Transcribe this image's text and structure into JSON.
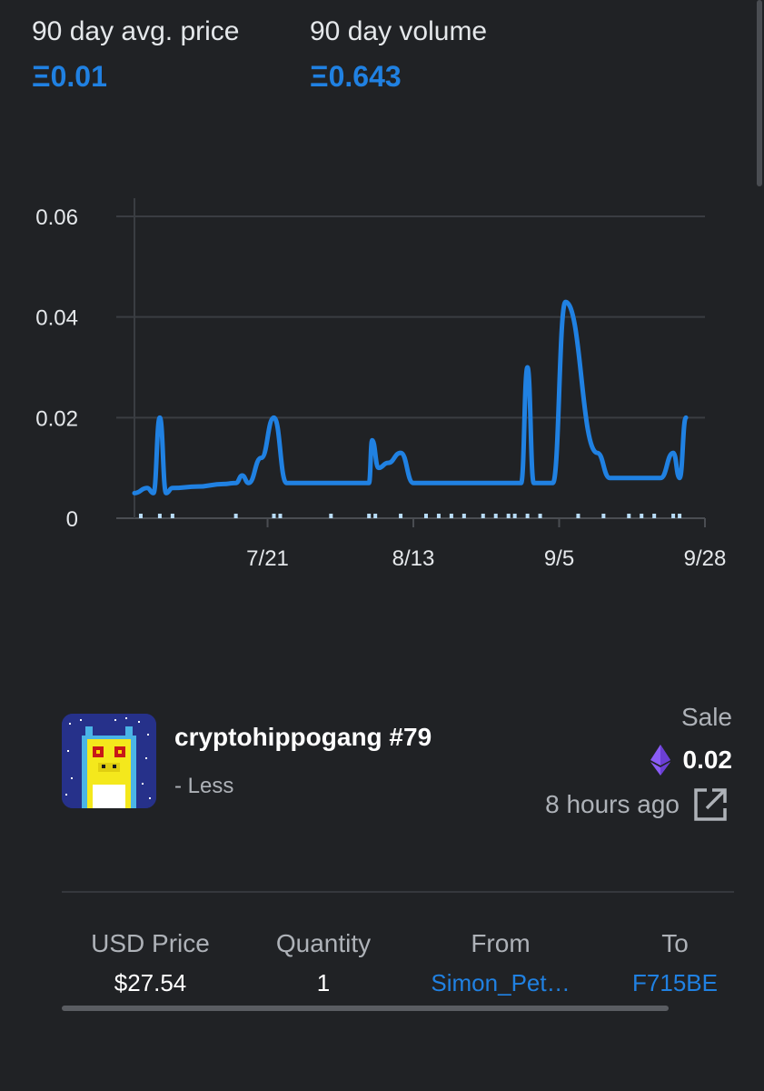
{
  "stats": {
    "avg_price_label": "90 day avg. price",
    "avg_price_value": "Ξ0.01",
    "volume_label": "90 day volume",
    "volume_value": "Ξ0.643"
  },
  "colors": {
    "accent": "#2081e2",
    "background": "#202225",
    "grid": "#3a3d42",
    "muted_text": "#aeb2b8",
    "eth_purple": "#8a5cf6"
  },
  "chart_data": {
    "type": "line",
    "title": "",
    "xlabel": "",
    "ylabel": "",
    "y_ticks": [
      "0.06",
      "0.04",
      "0.02",
      "0"
    ],
    "y_tick_values": [
      0.06,
      0.04,
      0.02,
      0
    ],
    "x_ticks": [
      "7/21",
      "8/13",
      "9/5",
      "9/28"
    ],
    "ylim": [
      0,
      0.06
    ],
    "xlim_days": [
      0,
      90
    ],
    "grid": true,
    "series": [
      {
        "name": "",
        "points": [
          [
            0,
            0.005
          ],
          [
            2,
            0.006
          ],
          [
            3,
            0.005
          ],
          [
            4,
            0.02
          ],
          [
            5,
            0.005
          ],
          [
            6,
            0.006
          ],
          [
            10,
            0.0063
          ],
          [
            14,
            0.0068
          ],
          [
            16,
            0.007
          ],
          [
            17,
            0.0085
          ],
          [
            18,
            0.007
          ],
          [
            20,
            0.012
          ],
          [
            22,
            0.02
          ],
          [
            24,
            0.007
          ],
          [
            30,
            0.007
          ],
          [
            37,
            0.007
          ],
          [
            37.5,
            0.0155
          ],
          [
            38.5,
            0.01
          ],
          [
            40,
            0.011
          ],
          [
            42,
            0.013
          ],
          [
            44,
            0.007
          ],
          [
            50,
            0.007
          ],
          [
            55,
            0.007
          ],
          [
            61,
            0.007
          ],
          [
            62,
            0.03
          ],
          [
            63,
            0.007
          ],
          [
            66,
            0.007
          ],
          [
            68,
            0.043
          ],
          [
            73,
            0.013
          ],
          [
            75,
            0.008
          ],
          [
            80,
            0.008
          ],
          [
            83,
            0.008
          ],
          [
            85,
            0.013
          ],
          [
            86,
            0.008
          ],
          [
            87,
            0.02
          ]
        ]
      }
    ],
    "volume_bars_days": [
      1,
      4,
      6,
      16,
      22,
      23,
      31,
      37,
      38,
      42,
      46,
      48,
      50,
      52,
      55,
      57,
      59,
      60,
      62,
      64,
      70,
      74,
      78,
      80,
      82,
      85,
      86
    ]
  },
  "item": {
    "name": "cryptohippogang #79",
    "collapse_label": "- Less",
    "event_type": "Sale",
    "price": "0.02",
    "time_ago": "8 hours ago",
    "thumbnail_icon": "pixel-hippo-avatar"
  },
  "table": {
    "headers": {
      "usd_price": "USD Price",
      "quantity": "Quantity",
      "from": "From",
      "to": "To"
    },
    "row": {
      "usd_price": "$27.54",
      "quantity": "1",
      "from": "Simon_Pet…",
      "to": "F715BE"
    }
  }
}
